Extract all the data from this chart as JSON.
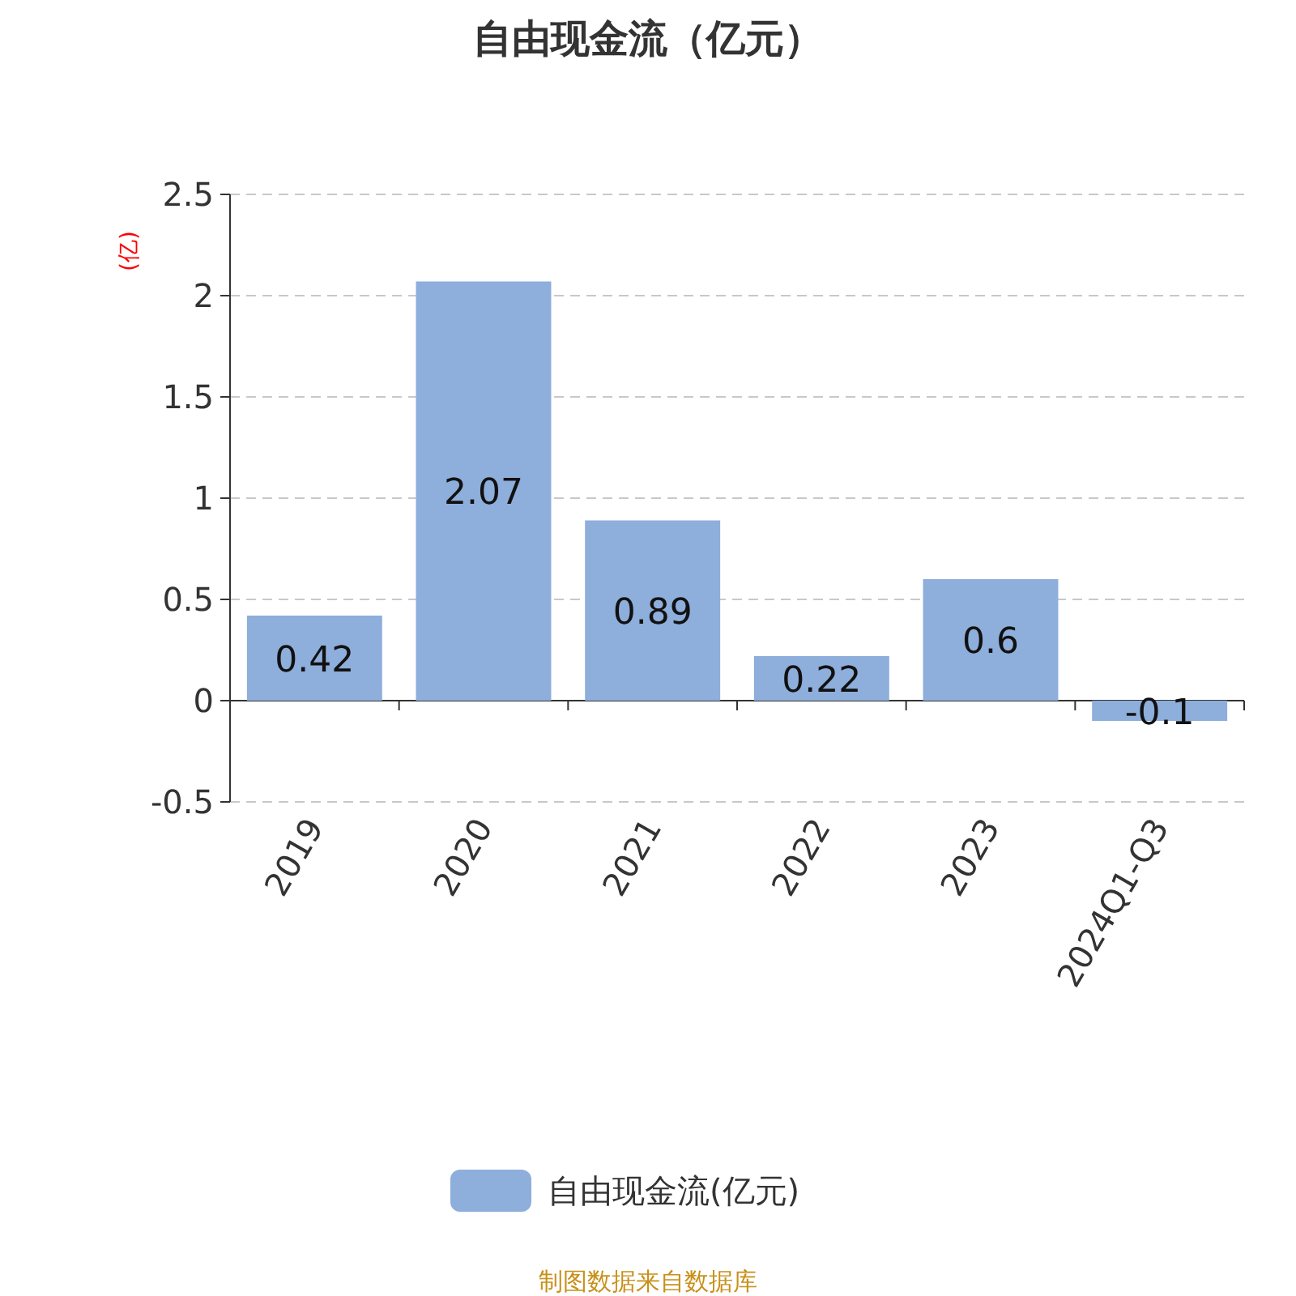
{
  "chart_data": {
    "type": "bar",
    "title": "自由现金流（亿元）",
    "ylabel": "(亿)",
    "categories": [
      "2019",
      "2020",
      "2021",
      "2022",
      "2023",
      "2024Q1-Q3"
    ],
    "series": [
      {
        "name": "自由现金流(亿元)",
        "color": "#8eaedb",
        "values": [
          0.42,
          2.07,
          0.89,
          0.22,
          0.6,
          -0.1
        ]
      }
    ],
    "ylim": [
      -0.5,
      2.5
    ],
    "yticks": [
      -0.5,
      0,
      0.5,
      1,
      1.5,
      2,
      2.5
    ],
    "grid": "y",
    "legend": "bottom",
    "data_labels": true,
    "annotations": [
      "制图数据来自数据库"
    ]
  }
}
